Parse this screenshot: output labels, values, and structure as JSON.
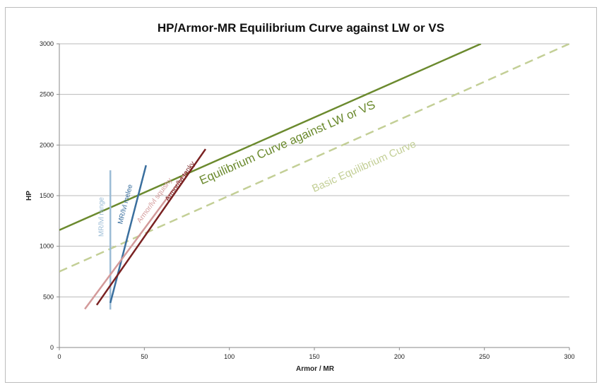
{
  "chart_data": {
    "type": "line",
    "title": "HP/Armor-MR Equilibrium Curve against LW or VS",
    "xlabel": "Armor / MR",
    "ylabel": "HP",
    "xlim": [
      0,
      300
    ],
    "ylim": [
      0,
      3000
    ],
    "x_ticks": [
      0,
      50,
      100,
      150,
      200,
      250,
      300
    ],
    "y_ticks": [
      0,
      500,
      1000,
      1500,
      2000,
      2500,
      3000
    ],
    "grid": "horizontal",
    "series": [
      {
        "name": "Equilibrium Curve against LW or VS",
        "color": "#6b8a2e",
        "dash": "solid",
        "width": 2.5,
        "points": [
          [
            0,
            1160
          ],
          [
            248,
            3000
          ]
        ],
        "label_pos": [
          135,
          1990
        ],
        "label_color": "#6b8a2e",
        "label_size": 17
      },
      {
        "name": "Basic Equilibrium Curve",
        "color": "#c3cf96",
        "dash": "dashed",
        "width": 2.5,
        "points": [
          [
            0,
            750
          ],
          [
            300,
            3000
          ]
        ],
        "label_pos": [
          180,
          1760
        ],
        "label_color": "#c3cf96",
        "label_size": 15
      },
      {
        "name": "MR/lvl range",
        "color": "#9bbcd6",
        "dash": "solid",
        "width": 2.5,
        "points": [
          [
            30,
            375
          ],
          [
            30,
            1750
          ]
        ],
        "label_pos": [
          26,
          1290
        ],
        "label_color": "#9bbcd6",
        "label_size": 10
      },
      {
        "name": "MR/lvl melee",
        "color": "#3a6f9e",
        "dash": "solid",
        "width": 2.5,
        "points": [
          [
            30,
            440
          ],
          [
            51,
            1800
          ]
        ],
        "label_pos": [
          40,
          1410
        ],
        "label_color": "#3a6f9e",
        "label_size": 10
      },
      {
        "name": "Armor/lvl squishy",
        "color": "#d39a9a",
        "dash": "solid",
        "width": 2.5,
        "points": [
          [
            15,
            380
          ],
          [
            75,
            1740
          ]
        ],
        "label_pos": [
          57,
          1440
        ],
        "label_color": "#d39a9a",
        "label_size": 10
      },
      {
        "name": "Armor/lvl tanky",
        "color": "#7a2222",
        "dash": "solid",
        "width": 2.5,
        "points": [
          [
            22,
            420
          ],
          [
            86,
            1960
          ]
        ],
        "label_pos": [
          72,
          1630
        ],
        "label_color": "#7a2222",
        "label_size": 10
      }
    ]
  }
}
